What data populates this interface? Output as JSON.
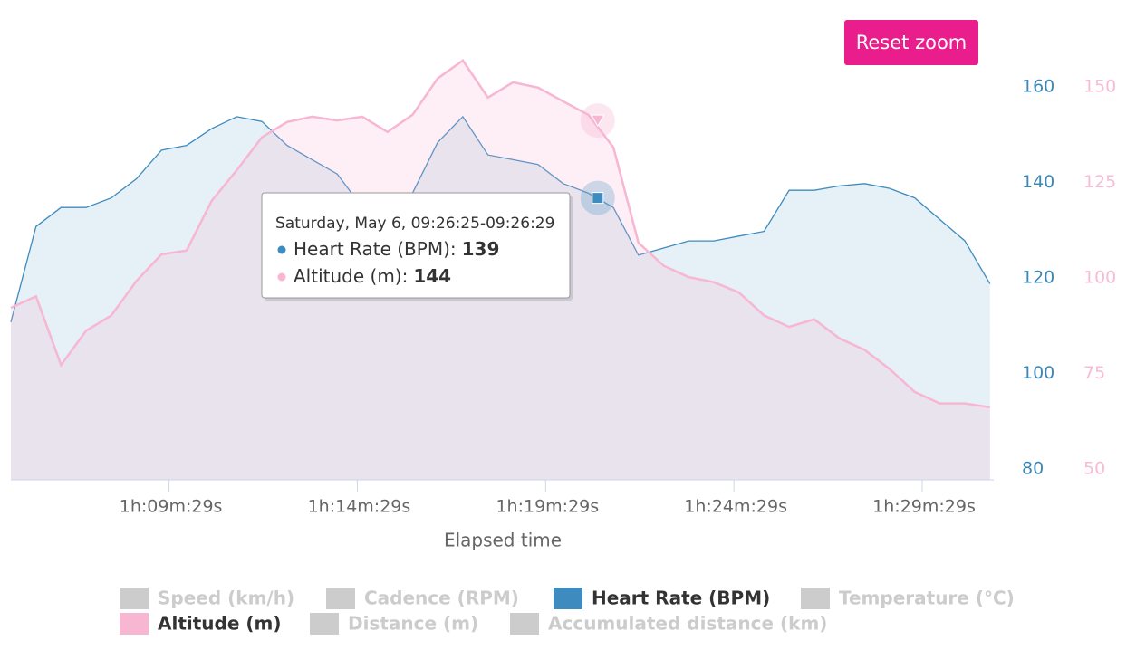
{
  "chart_data": {
    "type": "area",
    "reset_button": "Reset zoom",
    "x_label": "Elapsed time",
    "x": [
      3917,
      3957,
      3997,
      4037,
      4077,
      4117,
      4157,
      4197,
      4237,
      4277,
      4317,
      4357,
      4397,
      4437,
      4477,
      4517,
      4557,
      4597,
      4637,
      4677,
      4717,
      4757,
      4797,
      4837,
      4877,
      4917,
      4957,
      4997,
      5037,
      5077,
      5117,
      5157,
      5197,
      5237,
      5277,
      5317,
      5357,
      5397,
      5437,
      5477
    ],
    "xlim": [
      3917,
      5483
    ],
    "xticks": [
      {
        "value": 4169,
        "label": "1h:09m:29s"
      },
      {
        "value": 4469,
        "label": "1h:14m:29s"
      },
      {
        "value": 4769,
        "label": "1h:19m:29s"
      },
      {
        "value": 5069,
        "label": "1h:24m:29s"
      },
      {
        "value": 5369,
        "label": "1h:29m:29s"
      }
    ],
    "ylim": [
      80,
      170
    ],
    "yticks": [
      80,
      100,
      120,
      140,
      160
    ],
    "y2lim": [
      50,
      162.5
    ],
    "y2ticks": [
      50,
      75,
      100,
      125,
      150
    ],
    "grid": false,
    "series": [
      {
        "name": "Speed (km/h)",
        "visible": false
      },
      {
        "name": "Cadence (RPM)",
        "visible": false
      },
      {
        "name": "Heart Rate (BPM)",
        "visible": true,
        "color": "#3d8bbf",
        "values": [
          113,
          133,
          137,
          137,
          139,
          143,
          149,
          150,
          153.5,
          156,
          155,
          150,
          147,
          144,
          137,
          125,
          140,
          150.6,
          156,
          148,
          147,
          146,
          142,
          140,
          137,
          127,
          128.5,
          130,
          130,
          131,
          132,
          140.6,
          140.6,
          141.5,
          142,
          141,
          139,
          134.5,
          130,
          121
        ]
      },
      {
        "name": "Temperature (°C)",
        "visible": false
      },
      {
        "name": "Altitude (m)",
        "visible": true,
        "color": "#f7b6d2",
        "axis": "y2",
        "values": [
          95,
          98,
          80,
          89,
          93,
          102,
          109,
          110,
          123,
          131,
          139.6,
          143.6,
          145,
          144,
          145,
          141,
          145.5,
          155,
          159.7,
          150,
          154,
          152.6,
          149,
          145.5,
          137,
          112,
          106,
          103,
          101.7,
          99,
          93,
          90,
          92,
          87,
          84,
          79,
          73,
          70,
          70,
          69
        ]
      },
      {
        "name": "Distance (m)",
        "visible": false
      },
      {
        "name": "Accumulated distance (km)",
        "visible": false
      }
    ],
    "tooltip": {
      "x": 4852,
      "header": "Saturday, May 6, 09:26:25-09:26:29",
      "items": [
        {
          "label": "Heart Rate (BPM):",
          "value": 139
        },
        {
          "label": "Altitude (m):",
          "value": 144
        }
      ]
    }
  }
}
